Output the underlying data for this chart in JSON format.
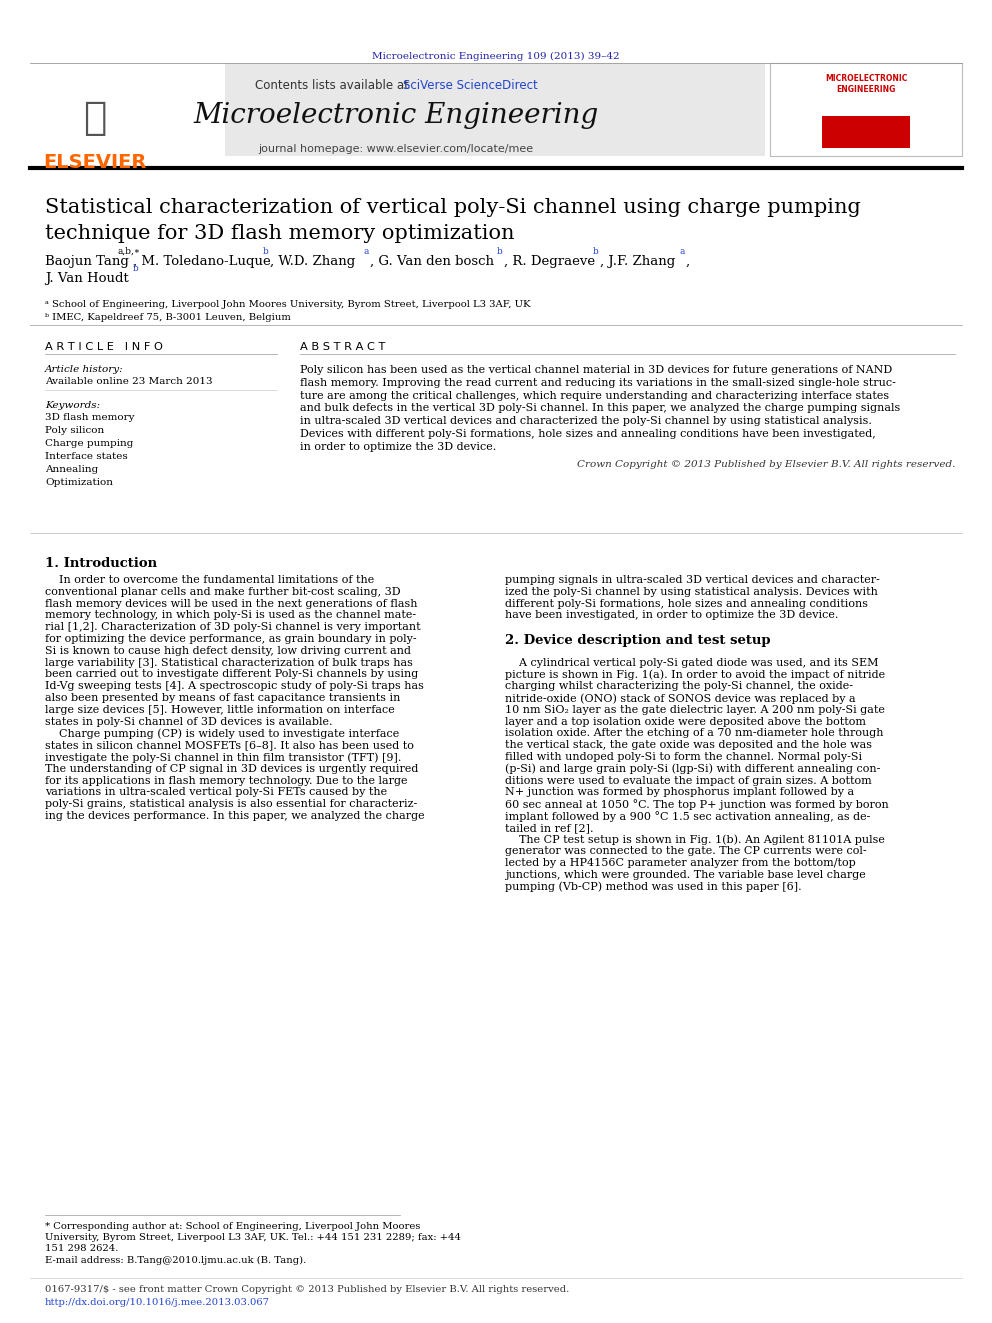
{
  "journal_ref": "Microelectronic Engineering 109 (2013) 39–42",
  "journal_ref_color": "#2222AA",
  "header_bg_color": "#E8E8E8",
  "contents_text": "Contents lists available at ",
  "sciverse_text": "SciVerse ScienceDirect",
  "sciverse_color": "#2244CC",
  "journal_name": "Microelectronic Engineering",
  "journal_homepage": "journal homepage: www.elsevier.com/locate/mee",
  "elsevier_color": "#FF6600",
  "paper_title_line1": "Statistical characterization of vertical poly-Si channel using charge pumping",
  "paper_title_line2": "technique for 3D flash memory optimization",
  "affil_a": "ᵃ School of Engineering, Liverpool John Moores University, Byrom Street, Liverpool L3 3AF, UK",
  "affil_b": "ᵇ IMEC, Kapeldreef 75, B-3001 Leuven, Belgium",
  "article_info_title": "A R T I C L E   I N F O",
  "article_history_label": "Article history:",
  "article_history_value": "Available online 23 March 2013",
  "keywords_label": "Keywords:",
  "keywords": [
    "3D flash memory",
    "Poly silicon",
    "Charge pumping",
    "Interface states",
    "Annealing",
    "Optimization"
  ],
  "abstract_title": "A B S T R A C T",
  "abstract_lines": [
    "Poly silicon has been used as the vertical channel material in 3D devices for future generations of NAND",
    "flash memory. Improving the read current and reducing its variations in the small-sized single-hole struc-",
    "ture are among the critical challenges, which require understanding and characterizing interface states",
    "and bulk defects in the vertical 3D poly-Si channel. In this paper, we analyzed the charge pumping signals",
    "in ultra-scaled 3D vertical devices and characterized the poly-Si channel by using statistical analysis.",
    "Devices with different poly-Si formations, hole sizes and annealing conditions have been investigated,",
    "in order to optimize the 3D device."
  ],
  "copyright_text": "Crown Copyright © 2013 Published by Elsevier B.V. All rights reserved.",
  "section1_title": "1. Introduction",
  "col1_lines": [
    "    In order to overcome the fundamental limitations of the",
    "conventional planar cells and make further bit-cost scaling, 3D",
    "flash memory devices will be used in the next generations of flash",
    "memory technology, in which poly-Si is used as the channel mate-",
    "rial [1,2]. Characterization of 3D poly-Si channel is very important",
    "for optimizing the device performance, as grain boundary in poly-",
    "Si is known to cause high defect density, low driving current and",
    "large variability [3]. Statistical characterization of bulk traps has",
    "been carried out to investigate different Poly-Si channels by using",
    "Id-Vg sweeping tests [4]. A spectroscopic study of poly-Si traps has",
    "also been presented by means of fast capacitance transients in",
    "large size devices [5]. However, little information on interface",
    "states in poly-Si channel of 3D devices is available.",
    "    Charge pumping (CP) is widely used to investigate interface",
    "states in silicon channel MOSFETs [6–8]. It also has been used to",
    "investigate the poly-Si channel in thin film transistor (TFT) [9].",
    "The understanding of CP signal in 3D devices is urgently required",
    "for its applications in flash memory technology. Due to the large",
    "variations in ultra-scaled vertical poly-Si FETs caused by the",
    "poly-Si grains, statistical analysis is also essential for characteriz-",
    "ing the devices performance. In this paper, we analyzed the charge"
  ],
  "col2_lines": [
    "pumping signals in ultra-scaled 3D vertical devices and character-",
    "ized the poly-Si channel by using statistical analysis. Devices with",
    "different poly-Si formations, hole sizes and annealing conditions",
    "have been investigated, in order to optimize the 3D device.",
    "",
    "2. Device description and test setup",
    "",
    "    A cylindrical vertical poly-Si gated diode was used, and its SEM",
    "picture is shown in Fig. 1(a). In order to avoid the impact of nitride",
    "charging whilst characterizing the poly-Si channel, the oxide-",
    "nitride-oxide (ONO) stack of SONOS device was replaced by a",
    "10 nm SiO₂ layer as the gate dielectric layer. A 200 nm poly-Si gate",
    "layer and a top isolation oxide were deposited above the bottom",
    "isolation oxide. After the etching of a 70 nm-diameter hole through",
    "the vertical stack, the gate oxide was deposited and the hole was",
    "filled with undoped poly-Si to form the channel. Normal poly-Si",
    "(p-Si) and large grain poly-Si (lgp-Si) with different annealing con-",
    "ditions were used to evaluate the impact of grain sizes. A bottom",
    "N+ junction was formed by phosphorus implant followed by a",
    "60 sec anneal at 1050 °C. The top P+ junction was formed by boron",
    "implant followed by a 900 °C 1.5 sec activation annealing, as de-",
    "tailed in ref [2].",
    "    The CP test setup is shown in Fig. 1(b). An Agilent 81101A pulse",
    "generator was connected to the gate. The CP currents were col-",
    "lected by a HP4156C parameter analyzer from the bottom/top",
    "junctions, which were grounded. The variable base level charge",
    "pumping (Vb-CP) method was used in this paper [6]."
  ],
  "col2_section2_line": 5,
  "footnote_lines": [
    "* Corresponding author at: School of Engineering, Liverpool John Moores",
    "University, Byrom Street, Liverpool L3 3AF, UK. Tel.: +44 151 231 2289; fax: +44",
    "151 298 2624."
  ],
  "footnote_email": "E-mail address: B.Tang@2010.ljmu.ac.uk (B. Tang).",
  "footer_issn": "0167-9317/$ - see front matter Crown Copyright © 2013 Published by Elsevier B.V. All rights reserved.",
  "footer_doi": "http://dx.doi.org/10.1016/j.mee.2013.03.067",
  "footer_doi_color": "#2244CC",
  "bg_color": "#FFFFFF",
  "text_color": "#000000"
}
